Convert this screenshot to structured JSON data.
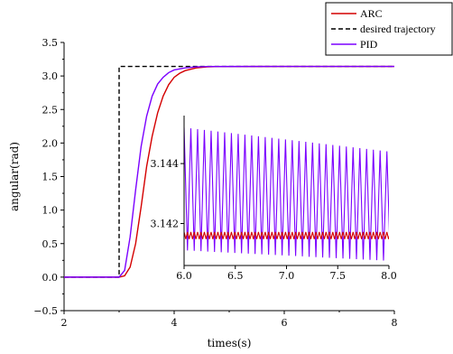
{
  "chart_data": [
    {
      "type": "line",
      "xlabel": "times(s)",
      "ylabel": "angular(rad)",
      "xlim": [
        2,
        8
      ],
      "ylim": [
        -0.5,
        3.5
      ],
      "x_ticks": [
        "2",
        "4",
        "6",
        "8"
      ],
      "y_ticks": [
        "−0.5",
        "0.0",
        "0.5",
        "1.0",
        "1.5",
        "2.0",
        "2.5",
        "3.0",
        "3.5"
      ],
      "grid": false,
      "legend_position": "top-right",
      "series": [
        {
          "name": "ARC",
          "color": "#d40000",
          "style": "solid",
          "x": [
            2,
            3.0,
            3.1,
            3.2,
            3.3,
            3.4,
            3.5,
            3.6,
            3.7,
            3.8,
            3.9,
            4.0,
            4.1,
            4.2,
            4.4,
            4.6,
            4.8,
            5.0,
            5.5,
            6.0,
            7.0,
            8.0
          ],
          "y": [
            0,
            0,
            0.02,
            0.15,
            0.5,
            1.05,
            1.65,
            2.1,
            2.45,
            2.7,
            2.87,
            2.98,
            3.04,
            3.08,
            3.12,
            3.135,
            3.14,
            3.141,
            3.1415,
            3.1416,
            3.1416,
            3.1416
          ]
        },
        {
          "name": "desired trajectory",
          "color": "#000000",
          "style": "dashed",
          "x": [
            2,
            3.0,
            3.0,
            8
          ],
          "y": [
            0,
            0,
            3.1416,
            3.1416
          ]
        },
        {
          "name": "PID",
          "color": "#7b00ff",
          "style": "solid",
          "x": [
            2,
            3.0,
            3.1,
            3.2,
            3.3,
            3.4,
            3.5,
            3.6,
            3.7,
            3.8,
            3.9,
            4.0,
            4.2,
            4.4,
            4.6,
            5.0,
            6.0,
            7.0,
            8.0
          ],
          "y": [
            0,
            0,
            0.1,
            0.6,
            1.3,
            1.95,
            2.4,
            2.7,
            2.88,
            2.98,
            3.05,
            3.09,
            3.12,
            3.135,
            3.14,
            3.1415,
            3.1416,
            3.1416,
            3.1416
          ]
        }
      ]
    },
    {
      "type": "line",
      "title": "",
      "xlim": [
        6.0,
        8.0
      ],
      "ylim": [
        3.1406,
        3.1456
      ],
      "x_ticks": [
        "6.0",
        "6.5",
        "7.0",
        "7.5",
        "8.0"
      ],
      "y_ticks": [
        "3.142",
        "3.144"
      ],
      "grid": false,
      "series": [
        {
          "name": "PID",
          "color": "#7b00ff",
          "oscillation_period": 0.066,
          "upper_start": 3.1452,
          "upper_end": 3.1444,
          "lower_start": 3.1411,
          "lower_end": 3.14075
        },
        {
          "name": "ARC",
          "color": "#d40000",
          "oscillation_period": 0.033,
          "upper": 3.14172,
          "lower": 3.14148
        }
      ]
    }
  ]
}
